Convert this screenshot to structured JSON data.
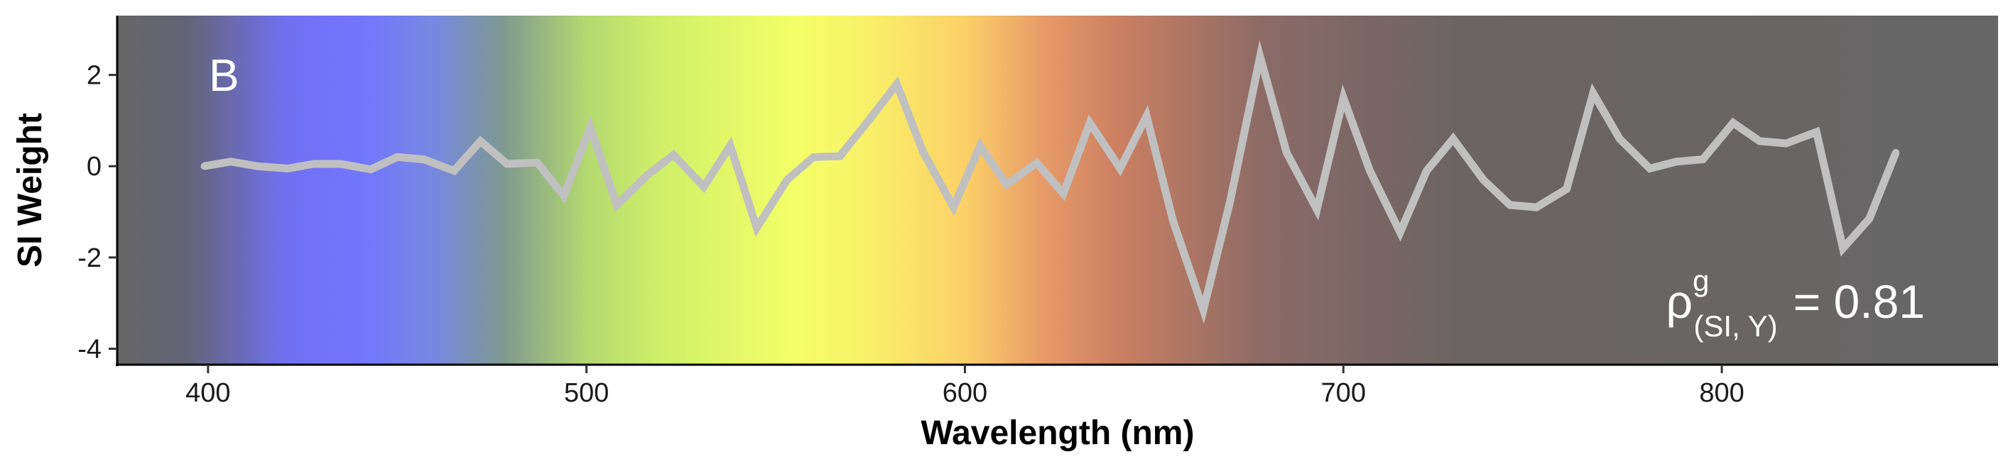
{
  "chart_data": {
    "type": "line",
    "title": "",
    "panel_label": "B",
    "xlabel": "Wavelength (nm)",
    "ylabel": "SI Weight",
    "xlim": [
      376,
      873
    ],
    "ylim": [
      -4.35,
      3.3
    ],
    "x_ticks": [
      {
        "value": 400,
        "label": "400"
      },
      {
        "value": 500,
        "label": "500"
      },
      {
        "value": 600,
        "label": "600"
      },
      {
        "value": 700,
        "label": "700"
      },
      {
        "value": 800,
        "label": "800"
      }
    ],
    "y_ticks": [
      {
        "value": 2,
        "label": "2"
      },
      {
        "value": 0,
        "label": "0"
      },
      {
        "value": -2,
        "label": "-2"
      },
      {
        "value": -4,
        "label": "-4"
      }
    ],
    "grid": false,
    "legend": "none",
    "background_gradient": [
      {
        "nm": 376,
        "color": "#666666"
      },
      {
        "nm": 395,
        "color": "#646478"
      },
      {
        "nm": 420,
        "color": "#7070f0"
      },
      {
        "nm": 440,
        "color": "#7276ff"
      },
      {
        "nm": 460,
        "color": "#7888e0"
      },
      {
        "nm": 478,
        "color": "#7e9a90"
      },
      {
        "nm": 500,
        "color": "#b4d870"
      },
      {
        "nm": 520,
        "color": "#d0f068"
      },
      {
        "nm": 555,
        "color": "#f4ff68"
      },
      {
        "nm": 575,
        "color": "#f8f068"
      },
      {
        "nm": 600,
        "color": "#fcd068"
      },
      {
        "nm": 620,
        "color": "#e89c68"
      },
      {
        "nm": 640,
        "color": "#cc8062"
      },
      {
        "nm": 680,
        "color": "#8a6a66"
      },
      {
        "nm": 730,
        "color": "#6c6464"
      },
      {
        "nm": 873,
        "color": "#666666"
      }
    ],
    "series": [
      {
        "color": "#c0c0c0",
        "x": [
          399,
          406,
          413,
          421,
          428,
          435,
          443,
          450,
          457,
          465,
          472,
          479,
          487,
          494,
          501,
          508,
          516,
          523,
          531,
          538,
          545,
          553,
          560,
          567,
          575,
          582,
          589,
          597,
          604,
          611,
          619,
          626,
          633,
          641,
          648,
          655,
          663,
          670,
          678,
          685,
          693,
          700,
          707,
          715,
          722,
          729,
          737,
          744,
          751,
          759,
          766,
          773,
          781,
          788,
          795,
          803,
          810,
          817,
          825,
          832,
          839,
          846
        ],
        "values": [
          0.0,
          0.1,
          0.0,
          -0.05,
          0.05,
          0.05,
          -0.07,
          0.2,
          0.15,
          -0.1,
          0.55,
          0.05,
          0.08,
          -0.65,
          0.85,
          -0.85,
          -0.2,
          0.25,
          -0.45,
          0.45,
          -1.35,
          -0.3,
          0.2,
          0.22,
          1.05,
          1.8,
          0.3,
          -0.9,
          0.45,
          -0.4,
          0.07,
          -0.6,
          0.95,
          -0.05,
          1.1,
          -1.2,
          -3.15,
          -0.8,
          2.4,
          0.3,
          -0.95,
          1.5,
          -0.1,
          -1.45,
          -0.1,
          0.6,
          -0.3,
          -0.85,
          -0.9,
          -0.5,
          1.6,
          0.6,
          -0.05,
          0.1,
          0.15,
          0.95,
          0.55,
          0.5,
          0.75,
          -1.8,
          -1.15,
          0.3
        ]
      }
    ],
    "annotation": {
      "symbol": "ρ",
      "superscript": "g",
      "subscript": "(SI, Y)",
      "text": "= 0.81"
    }
  }
}
